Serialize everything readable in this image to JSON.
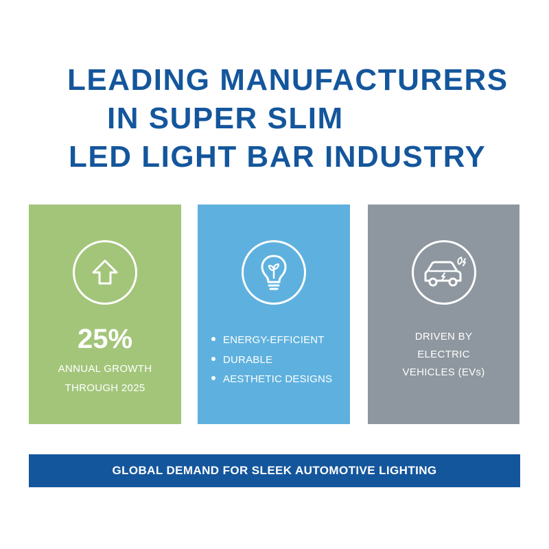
{
  "title": {
    "line1": "LEADING MANUFACTURERS",
    "line2": "IN SUPER SLIM",
    "line3": "LED LIGHT BAR INDUSTRY"
  },
  "colors": {
    "title": "#14569c",
    "growth_card": "#a3c57a",
    "features_card": "#5eb1de",
    "ev_card": "#8e979f",
    "banner": "#14569c"
  },
  "cards": {
    "growth": {
      "icon": "house-arrow-up-icon",
      "stat": "25%",
      "caption_line1": "ANNUAL GROWTH",
      "caption_line2": "THROUGH 2025"
    },
    "features": {
      "icon": "lightbulb-sprout-icon",
      "items": [
        "ENERGY-EFFICIENT",
        "DURABLE",
        "AESTHETIC DESIGNS"
      ]
    },
    "ev": {
      "icon": "electric-car-icon",
      "caption_line1": "DRIVEN BY",
      "caption_line2": "ELECTRIC",
      "caption_line3": "VEHICLES (EVs)"
    }
  },
  "banner": {
    "text": "GLOBAL DEMAND FOR SLEEK AUTOMOTIVE LIGHTING"
  }
}
